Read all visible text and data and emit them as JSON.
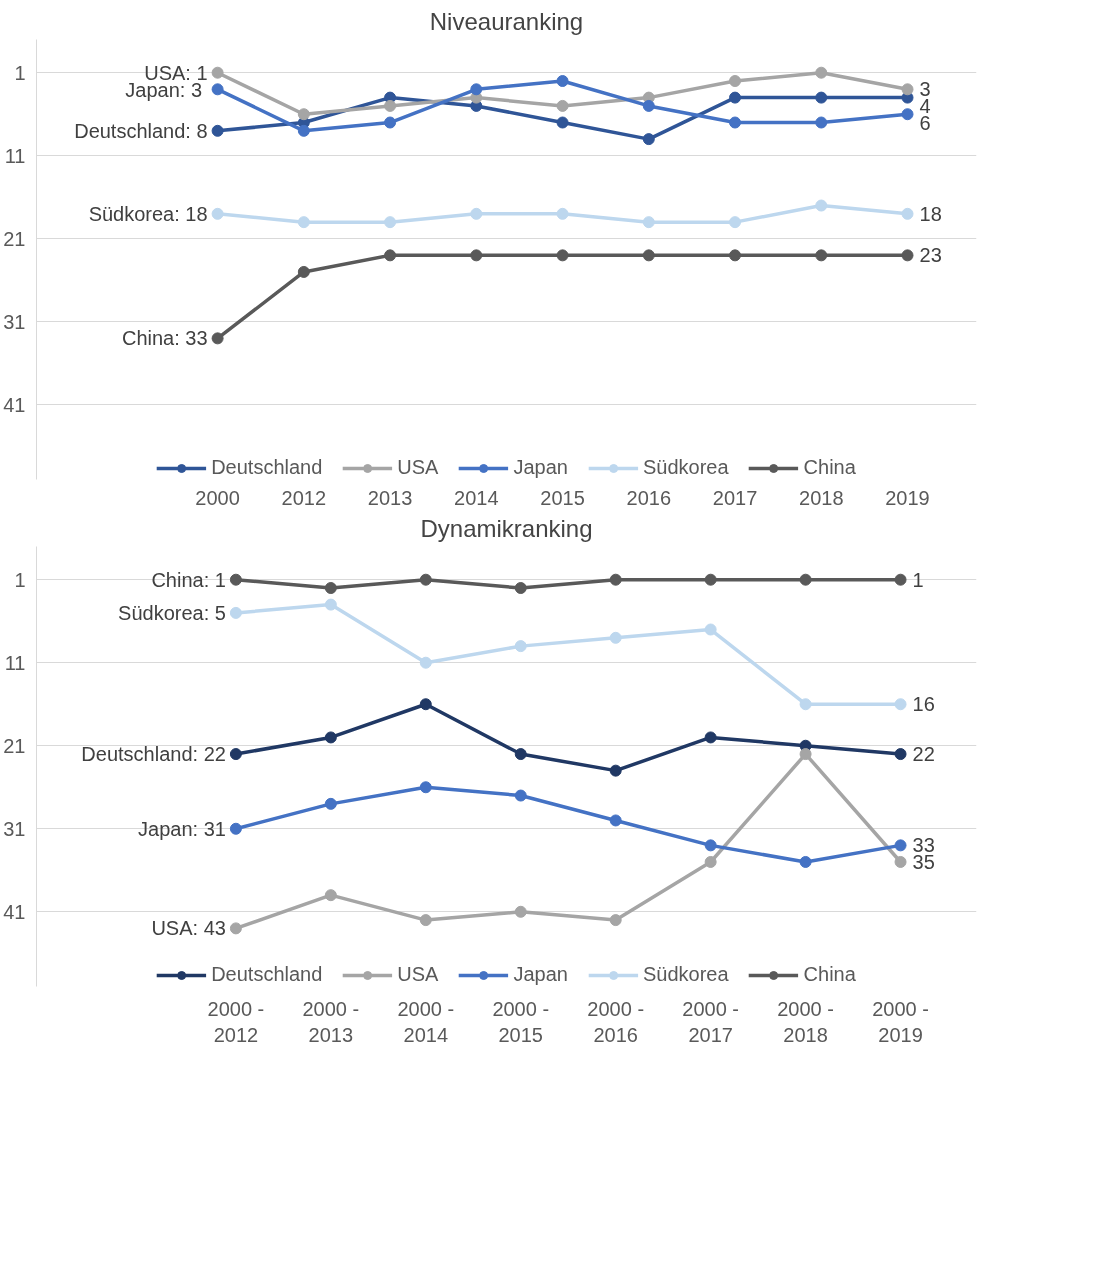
{
  "chart_data": [
    {
      "type": "line",
      "title": "Niveauranking",
      "categories": [
        "2000",
        "2012",
        "2013",
        "2014",
        "2015",
        "2016",
        "2017",
        "2018",
        "2019"
      ],
      "ylim": [
        50,
        -3
      ],
      "yticks": [
        1,
        11,
        21,
        31,
        41
      ],
      "grid": "y",
      "legend": "bottom",
      "marker": "circle",
      "series": [
        {
          "name": "Deutschland",
          "color": "#2f5597",
          "values": [
            8,
            7,
            4,
            5,
            7,
            9,
            4,
            4,
            4
          ],
          "value_labels": [
            "Deutschland: 8",
            null,
            null,
            null,
            null,
            null,
            null,
            null,
            "4"
          ]
        },
        {
          "name": "USA",
          "color": "#a5a5a5",
          "values": [
            1,
            6,
            5,
            4,
            5,
            4,
            2,
            1,
            3
          ],
          "value_labels": [
            "USA: 1",
            null,
            null,
            null,
            null,
            null,
            null,
            null,
            "3"
          ]
        },
        {
          "name": "Japan",
          "color": "#4472c4",
          "values": [
            3,
            8,
            7,
            3,
            2,
            5,
            7,
            7,
            6
          ],
          "value_labels": [
            "Japan:  3",
            null,
            null,
            null,
            null,
            null,
            null,
            null,
            "6"
          ]
        },
        {
          "name": "Südkorea",
          "color": "#bdd7ee",
          "values": [
            18,
            19,
            19,
            18,
            18,
            19,
            19,
            17,
            18
          ],
          "value_labels": [
            "Südkorea: 18",
            null,
            null,
            null,
            null,
            null,
            null,
            null,
            "18"
          ]
        },
        {
          "name": "China",
          "color": "#595959",
          "values": [
            33,
            25,
            23,
            23,
            23,
            23,
            23,
            23,
            23
          ],
          "value_labels": [
            "China: 33",
            null,
            null,
            null,
            null,
            null,
            null,
            null,
            "23"
          ]
        }
      ]
    },
    {
      "type": "line",
      "title": "Dynamikranking",
      "categories": [
        "2000 - 2012",
        "2000 - 2013",
        "2000 - 2014",
        "2000 - 2015",
        "2000 - 2016",
        "2000 - 2017",
        "2000 - 2018",
        "2000 - 2019"
      ],
      "ylim": [
        50,
        -3
      ],
      "yticks": [
        1,
        11,
        21,
        31,
        41
      ],
      "grid": "y",
      "legend": "bottom",
      "marker": "circle",
      "series": [
        {
          "name": "Deutschland",
          "color": "#203864",
          "values": [
            22,
            20,
            16,
            22,
            24,
            20,
            21,
            22
          ],
          "value_labels": [
            "Deutschland: 22",
            null,
            null,
            null,
            null,
            null,
            null,
            "22"
          ]
        },
        {
          "name": "USA",
          "color": "#a5a5a5",
          "values": [
            43,
            39,
            42,
            41,
            42,
            35,
            22,
            35
          ],
          "value_labels": [
            "USA: 43",
            null,
            null,
            null,
            null,
            null,
            null,
            "35"
          ]
        },
        {
          "name": "Japan",
          "color": "#4472c4",
          "values": [
            31,
            28,
            26,
            27,
            30,
            33,
            35,
            33
          ],
          "value_labels": [
            "Japan: 31",
            null,
            null,
            null,
            null,
            null,
            null,
            "33"
          ]
        },
        {
          "name": "Südkorea",
          "color": "#bdd7ee",
          "values": [
            5,
            4,
            11,
            9,
            8,
            7,
            16,
            16
          ],
          "value_labels": [
            "Südkorea: 5",
            null,
            null,
            null,
            null,
            null,
            null,
            "16"
          ]
        },
        {
          "name": "China",
          "color": "#595959",
          "values": [
            1,
            2,
            1,
            2,
            1,
            1,
            1,
            1
          ],
          "value_labels": [
            "China: 1",
            null,
            null,
            null,
            null,
            null,
            null,
            "1"
          ]
        }
      ]
    }
  ]
}
